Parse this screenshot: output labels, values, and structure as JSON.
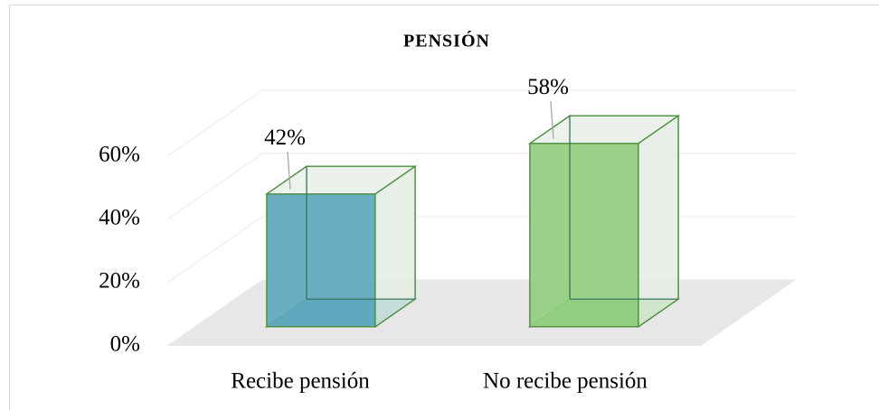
{
  "chart_data": {
    "type": "bar3d",
    "title": "PENSIÓN",
    "categories": [
      "Recibe pensión",
      "No recibe pensión"
    ],
    "values": [
      42,
      58
    ],
    "value_labels": [
      "42%",
      "58%"
    ],
    "colors": [
      "#5ea7bd",
      "#93ce7f"
    ],
    "ylim": [
      0,
      60
    ],
    "yticks": [
      {
        "value": 0,
        "label": "0%"
      },
      {
        "value": 20,
        "label": "20%"
      },
      {
        "value": 40,
        "label": "40%"
      },
      {
        "value": 60,
        "label": "60%"
      }
    ],
    "grid": true
  }
}
